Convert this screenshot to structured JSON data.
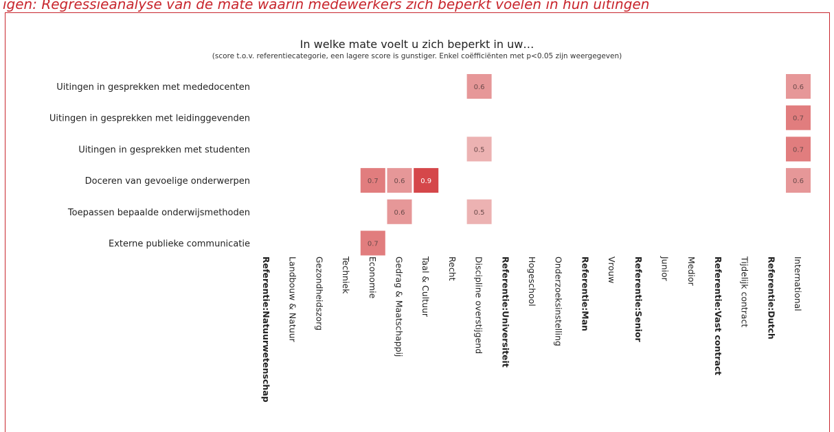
{
  "caption": "igen: Regressieanalyse van de mate waarin medewerkers zich beperkt voelen in hun uitingen",
  "chart_data": {
    "type": "heatmap",
    "title": "In welke mate voelt u zich beperkt in uw…",
    "subtitle": "(score t.o.v. referentiecategorie, een lagere score is gunstiger. Enkel coëfficiënten met p<0.05 zijn weergegeven)",
    "rows": [
      "Uitingen in gesprekken met mededocenten",
      "Uitingen in gesprekken met leidinggevenden",
      "Uitingen in gesprekken met studenten",
      "Doceren van gevoelige onderwerpen",
      "Toepassen bepaalde onderwijsmethoden",
      "Externe publieke communicatie"
    ],
    "columns": [
      {
        "label": "Referentie:Natuurwetenschap",
        "reference": true
      },
      {
        "label": "Landbouw & Natuur",
        "reference": false
      },
      {
        "label": "Gezondheidszorg",
        "reference": false
      },
      {
        "label": "Techniek",
        "reference": false
      },
      {
        "label": "Economie",
        "reference": false
      },
      {
        "label": "Gedrag & Maatschappij",
        "reference": false
      },
      {
        "label": "Taal & Cultuur",
        "reference": false
      },
      {
        "label": "Recht",
        "reference": false
      },
      {
        "label": "Discipline overstijgend",
        "reference": false
      },
      {
        "label": "Referentie:Universiteit",
        "reference": true
      },
      {
        "label": "Hogeschool",
        "reference": false
      },
      {
        "label": "Onderzoeksinstelling",
        "reference": false
      },
      {
        "label": "Referentie:Man",
        "reference": true
      },
      {
        "label": "Vrouw",
        "reference": false
      },
      {
        "label": "Referentie:Senior",
        "reference": true
      },
      {
        "label": "Junior",
        "reference": false
      },
      {
        "label": "Medior",
        "reference": false
      },
      {
        "label": "Referentie:Vast contract",
        "reference": true
      },
      {
        "label": "Tijdelijk contract",
        "reference": false
      },
      {
        "label": "Referentie:Dutch",
        "reference": true
      },
      {
        "label": "International",
        "reference": false
      }
    ],
    "cells": [
      {
        "row": 0,
        "col": 8,
        "value": 0.6
      },
      {
        "row": 0,
        "col": 20,
        "value": 0.6
      },
      {
        "row": 1,
        "col": 20,
        "value": 0.7
      },
      {
        "row": 2,
        "col": 8,
        "value": 0.5
      },
      {
        "row": 2,
        "col": 20,
        "value": 0.7
      },
      {
        "row": 3,
        "col": 4,
        "value": 0.7
      },
      {
        "row": 3,
        "col": 5,
        "value": 0.6
      },
      {
        "row": 3,
        "col": 6,
        "value": 0.9
      },
      {
        "row": 3,
        "col": 20,
        "value": 0.6
      },
      {
        "row": 4,
        "col": 5,
        "value": 0.6
      },
      {
        "row": 4,
        "col": 8,
        "value": 0.5
      },
      {
        "row": 5,
        "col": 4,
        "value": 0.7
      }
    ],
    "colors": {
      "low": "#ecb2b2",
      "high": "#d5474a",
      "cell_text": "#6b4a4a",
      "cell_text_strong": "#ffffff"
    }
  }
}
